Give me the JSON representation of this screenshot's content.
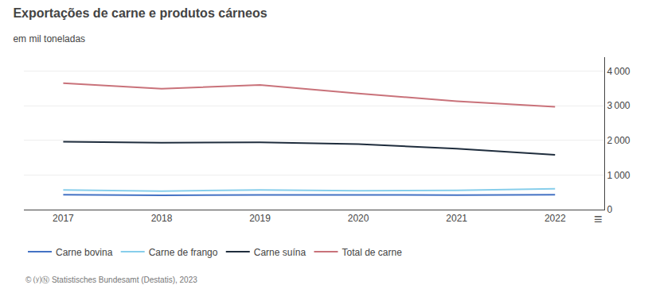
{
  "chart_data": {
    "type": "line",
    "title": "Exportações de carne e produtos cárneos",
    "subtitle": "em mil toneladas",
    "annotations": [
      "© ⒴Ⓝ Statistisches Bundesamt (Destatis), 2023",
      "≡"
    ],
    "x": [
      2017,
      2018,
      2019,
      2020,
      2021,
      2022
    ],
    "series": [
      {
        "name": "Carne bovina",
        "color": "#4472c4",
        "values": [
          430,
          415,
          425,
          415,
          420,
          430
        ]
      },
      {
        "name": "Carne de frango",
        "color": "#87ceeb",
        "values": [
          570,
          535,
          565,
          545,
          555,
          600
        ]
      },
      {
        "name": "Carne suína",
        "color": "#1f2d3d",
        "values": [
          1960,
          1930,
          1940,
          1890,
          1760,
          1580
        ]
      },
      {
        "name": "Total de carne",
        "color": "#c9727a",
        "values": [
          3650,
          3490,
          3600,
          3350,
          3130,
          2970
        ]
      }
    ],
    "xlim": [
      2016.6,
      2022.5
    ],
    "xticks": [
      2017,
      2018,
      2019,
      2020,
      2021,
      2022
    ],
    "ylim": [
      0,
      4400
    ],
    "yticks": [
      0,
      {
        "value": 1000,
        "label": "1 000"
      },
      {
        "value": 2000,
        "label": "2 000"
      },
      {
        "value": 3000,
        "label": "3 000"
      },
      {
        "value": 4000,
        "label": "4 000"
      }
    ],
    "grid": true,
    "legend": "bottom"
  }
}
